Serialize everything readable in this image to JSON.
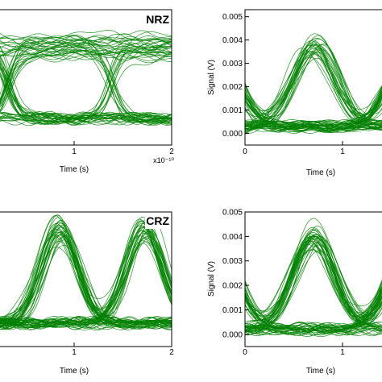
{
  "chart_data": [
    {
      "type": "line",
      "panel": "top-left",
      "tag": "NRZ",
      "xlabel": "Time (s)",
      "x_multiplier": "x10⁻¹⁰",
      "xlim": [
        0,
        2
      ],
      "x_ticks": [
        "1",
        "2"
      ],
      "ylabel": "",
      "pattern": "nrz",
      "levels": {
        "low": 0.0003,
        "high": 0.0035
      },
      "crossings_x": [
        0.1,
        1.3
      ],
      "color": "#008000",
      "n_traces": 70
    },
    {
      "type": "line",
      "panel": "top-right",
      "tag": "",
      "xlabel": "Time (s)",
      "xlim": [
        0,
        1.4
      ],
      "x_ticks": [
        "0",
        "1"
      ],
      "ylabel": "Signal (V)",
      "ylim": [
        -0.0005,
        0.005
      ],
      "y_ticks": [
        "0.000",
        "0.001",
        "0.002",
        "0.003",
        "0.004",
        "0.005"
      ],
      "pattern": "rz",
      "levels": {
        "low": 0.0003,
        "peak": 0.0037
      },
      "peaks_x": [
        -0.3,
        0.7,
        1.7
      ],
      "color": "#008000",
      "n_traces": 70
    },
    {
      "type": "line",
      "panel": "bottom-left",
      "tag": "CRZ",
      "xlabel": "Time (s)",
      "xlim": [
        0,
        2
      ],
      "x_ticks": [
        "1",
        "2"
      ],
      "ylabel": "",
      "pattern": "rz",
      "levels": {
        "low": 0.0002,
        "peak": 0.0042
      },
      "peaks_x": [
        0.7,
        1.7
      ],
      "color": "#008000",
      "n_traces": 70
    },
    {
      "type": "line",
      "panel": "bottom-right",
      "tag": "",
      "xlabel": "Time (s)",
      "xlim": [
        0,
        1.4
      ],
      "x_ticks": [
        "0",
        "1"
      ],
      "ylabel": "Signal (V)",
      "ylim": [
        -0.0005,
        0.005
      ],
      "y_ticks": [
        "0.000",
        "0.001",
        "0.002",
        "0.003",
        "0.004",
        "0.005"
      ],
      "pattern": "rz",
      "levels": {
        "low": 0.0002,
        "peak": 0.004
      },
      "peaks_x": [
        -0.3,
        0.7,
        1.7
      ],
      "color": "#008000",
      "n_traces": 70
    }
  ]
}
